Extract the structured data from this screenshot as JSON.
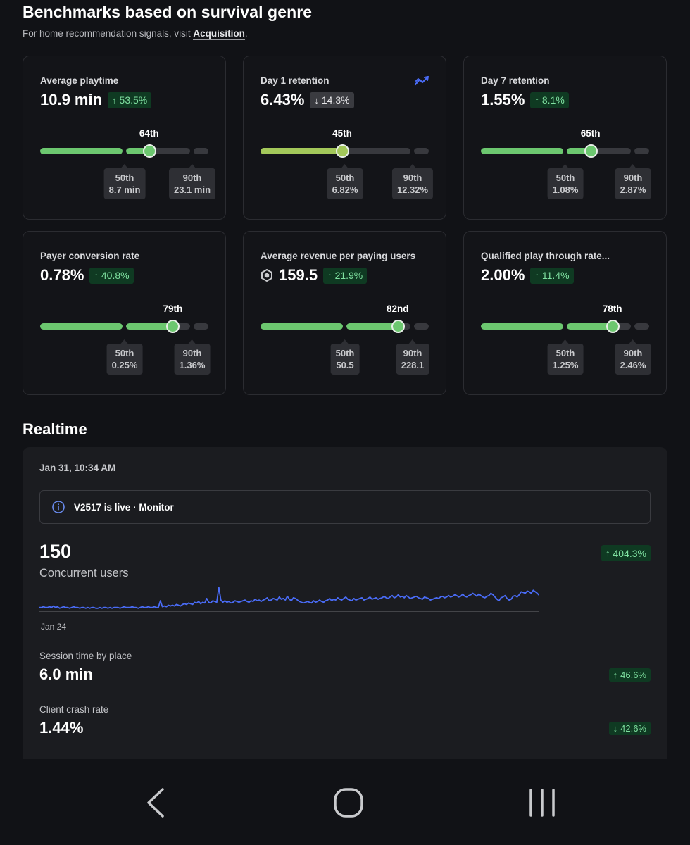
{
  "header": {
    "title": "Benchmarks based on survival genre",
    "subtitle_prefix": "For home recommendation signals, visit ",
    "subtitle_link": "Acquisition",
    "subtitle_suffix": "."
  },
  "cards": [
    {
      "title": "Average playtime",
      "value": "10.9 min",
      "change": "53.5%",
      "change_dir": "up",
      "change_style": "green",
      "percentile": "64th",
      "percentile_pos": 0.36,
      "fill_color": "#6cc76f",
      "p50_label": "50th",
      "p50_value": "8.7 min",
      "p90_label": "90th",
      "p90_value": "23.1 min"
    },
    {
      "title": "Day 1 retention",
      "value": "6.43%",
      "change": "14.3%",
      "change_dir": "down",
      "change_style": "grey",
      "percentile": "45th",
      "percentile_pos": -0.01,
      "fill_color": "#a3c85a",
      "has_trend_icon": true,
      "p50_label": "50th",
      "p50_value": "6.82%",
      "p90_label": "90th",
      "p90_value": "12.32%"
    },
    {
      "title": "Day 7 retention",
      "value": "1.55%",
      "change": "8.1%",
      "change_dir": "up",
      "change_style": "green",
      "percentile": "65th",
      "percentile_pos": 0.37,
      "fill_color": "#6cc76f",
      "p50_label": "50th",
      "p50_value": "1.08%",
      "p90_label": "90th",
      "p90_value": "2.87%"
    },
    {
      "title": "Payer conversion rate",
      "value": "0.78%",
      "change": "40.8%",
      "change_dir": "up",
      "change_style": "green",
      "percentile": "79th",
      "percentile_pos": 0.73,
      "fill_color": "#6cc76f",
      "p50_label": "50th",
      "p50_value": "0.25%",
      "p90_label": "90th",
      "p90_value": "1.36%"
    },
    {
      "title": "Average revenue per paying users",
      "value": "159.5",
      "change": "21.9%",
      "change_dir": "up",
      "change_style": "green",
      "has_robux": true,
      "percentile": "82nd",
      "percentile_pos": 0.8,
      "fill_color": "#6cc76f",
      "p50_label": "50th",
      "p50_value": "50.5",
      "p90_label": "90th",
      "p90_value": "228.1"
    },
    {
      "title": "Qualified play through rate...",
      "value": "2.00%",
      "change": "11.4%",
      "change_dir": "up",
      "change_style": "green",
      "percentile": "78th",
      "percentile_pos": 0.71,
      "fill_color": "#6cc76f",
      "p50_label": "50th",
      "p50_value": "1.25%",
      "p90_label": "90th",
      "p90_value": "2.46%"
    }
  ],
  "realtime": {
    "title": "Realtime",
    "date": "Jan 31, 10:34 AM",
    "banner_text": "V2517 is live · ",
    "banner_link": "Monitor",
    "concurrent_value": "150",
    "concurrent_label": "Concurrent users",
    "concurrent_change": "404.3%",
    "spark_start_label": "Jan 24",
    "spark_values": [
      5,
      5,
      6,
      5,
      5,
      6,
      5,
      7,
      5,
      6,
      4,
      5,
      6,
      5,
      5,
      4,
      5,
      6,
      5,
      5,
      4,
      5,
      5,
      4,
      5,
      4,
      5,
      5,
      4,
      4,
      5,
      4,
      5,
      5,
      4,
      5,
      4,
      5,
      5,
      5,
      4,
      5,
      6,
      5,
      5,
      5,
      6,
      5,
      5,
      4,
      5,
      6,
      5,
      5,
      6,
      5,
      5,
      6,
      5,
      5,
      14,
      6,
      7,
      6,
      8,
      7,
      8,
      7,
      9,
      8,
      7,
      9,
      10,
      9,
      11,
      10,
      9,
      12,
      11,
      13,
      10,
      12,
      11,
      17,
      12,
      11,
      14,
      13,
      12,
      32,
      15,
      12,
      14,
      12,
      13,
      11,
      12,
      14,
      13,
      12,
      13,
      14,
      15,
      13,
      12,
      14,
      13,
      16,
      14,
      15,
      13,
      15,
      16,
      18,
      14,
      15,
      17,
      16,
      15,
      19,
      16,
      17,
      15,
      20,
      16,
      14,
      18,
      17,
      15,
      13,
      12,
      11,
      12,
      13,
      12,
      11,
      14,
      12,
      13,
      15,
      13,
      12,
      14,
      15,
      17,
      14,
      16,
      15,
      18,
      16,
      15,
      17,
      19,
      16,
      15,
      14,
      17,
      15,
      16,
      17,
      18,
      15,
      16,
      17,
      19,
      16,
      17,
      18,
      16,
      17,
      18,
      20,
      18,
      17,
      19,
      21,
      18,
      19,
      22,
      19,
      20,
      18,
      21,
      19,
      17,
      18,
      19,
      20,
      18,
      17,
      16,
      19,
      18,
      17,
      15,
      16,
      17,
      18,
      17,
      19,
      20,
      18,
      19,
      21,
      19,
      20,
      22,
      21,
      19,
      20,
      23,
      20,
      19,
      21,
      22,
      24,
      22,
      20,
      23,
      21,
      19,
      18,
      20,
      21,
      24,
      22,
      19,
      16,
      14,
      18,
      19,
      21,
      17,
      15,
      16,
      20,
      21,
      19,
      22,
      26,
      25,
      24,
      27,
      26,
      24,
      28,
      26,
      24,
      21
    ],
    "session_label": "Session time by place",
    "session_value": "6.0 min",
    "session_change": "46.6%",
    "crash_label": "Client crash rate",
    "crash_value": "1.44%",
    "crash_change": "42.6%",
    "accent": "#4a6cf7"
  }
}
